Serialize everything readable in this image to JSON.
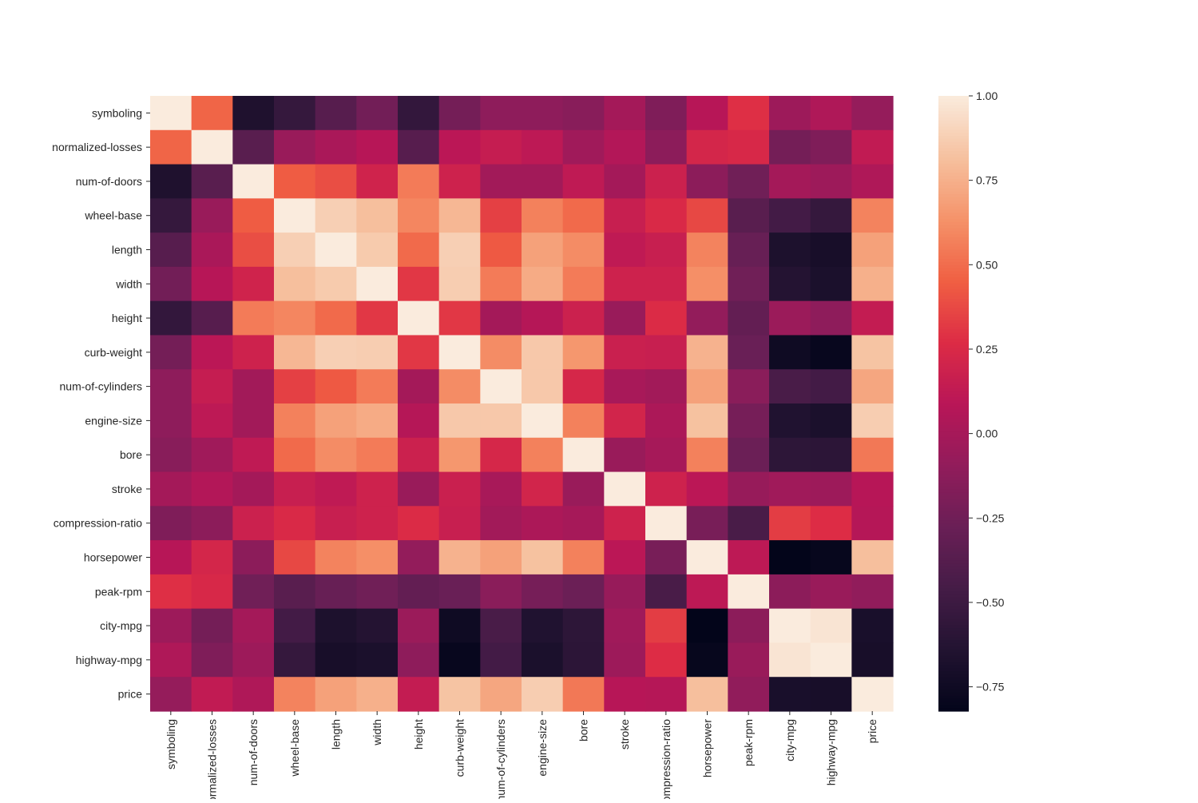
{
  "chart_data": {
    "type": "heatmap",
    "title": "",
    "xlabel": "",
    "ylabel": "",
    "colormap": "rocket",
    "vmin": -0.822,
    "vmax": 1.0,
    "colormap_stops": [
      "#03051a",
      "#221331",
      "#451c47",
      "#6a1f56",
      "#921c5b",
      "#b91657",
      "#dd2c45",
      "#f06043",
      "#f5936a",
      "#f6c19f",
      "#faebdd"
    ],
    "legend": "colorbar-right",
    "colorbar_ticks": [
      1.0,
      0.75,
      0.5,
      0.25,
      0.0,
      -0.25,
      -0.5,
      -0.75
    ],
    "colorbar_tick_labels": [
      "1.00",
      "0.75",
      "0.50",
      "0.25",
      "0.00",
      "−0.25",
      "−0.50",
      "−0.75"
    ],
    "labels": [
      "symboling",
      "normalized-losses",
      "num-of-doors",
      "wheel-base",
      "length",
      "width",
      "height",
      "curb-weight",
      "num-of-cylinders",
      "engine-size",
      "bore",
      "stroke",
      "compression-ratio",
      "horsepower",
      "peak-rpm",
      "city-mpg",
      "highway-mpg",
      "price"
    ],
    "values": [
      [
        1,
        0.47,
        -0.66,
        -0.54,
        -0.37,
        -0.24,
        -0.55,
        -0.23,
        -0.11,
        -0.11,
        -0.14,
        -0.01,
        -0.18,
        0.08,
        0.28,
        -0.04,
        0.04,
        -0.08
      ],
      [
        0.47,
        1,
        -0.36,
        -0.06,
        0.02,
        0.08,
        -0.37,
        0.1,
        0.15,
        0.11,
        -0.03,
        0.06,
        -0.12,
        0.22,
        0.24,
        -0.23,
        -0.18,
        0.13
      ],
      [
        -0.66,
        -0.36,
        1,
        0.44,
        0.39,
        0.2,
        0.55,
        0.19,
        -0.02,
        -0.02,
        0.12,
        -0.01,
        0.18,
        -0.12,
        -0.25,
        -0.01,
        -0.04,
        0.04
      ],
      [
        -0.54,
        -0.06,
        0.44,
        1,
        0.88,
        0.81,
        0.59,
        0.78,
        0.34,
        0.57,
        0.49,
        0.16,
        0.25,
        0.37,
        -0.36,
        -0.47,
        -0.54,
        0.58
      ],
      [
        -0.37,
        0.02,
        0.39,
        0.88,
        1,
        0.86,
        0.49,
        0.88,
        0.43,
        0.69,
        0.61,
        0.12,
        0.16,
        0.58,
        -0.29,
        -0.67,
        -0.7,
        0.69
      ],
      [
        -0.24,
        0.08,
        0.2,
        0.81,
        0.86,
        1,
        0.31,
        0.87,
        0.55,
        0.73,
        0.55,
        0.19,
        0.19,
        0.62,
        -0.25,
        -0.63,
        -0.68,
        0.75
      ],
      [
        -0.55,
        -0.37,
        0.55,
        0.59,
        0.49,
        0.31,
        1,
        0.31,
        -0.01,
        0.07,
        0.18,
        -0.06,
        0.26,
        -0.09,
        -0.31,
        -0.05,
        -0.11,
        0.14
      ],
      [
        -0.23,
        0.1,
        0.19,
        0.78,
        0.88,
        0.87,
        0.31,
        1,
        0.61,
        0.85,
        0.65,
        0.17,
        0.16,
        0.76,
        -0.28,
        -0.75,
        -0.79,
        0.83
      ],
      [
        -0.11,
        0.15,
        -0.02,
        0.34,
        0.43,
        0.55,
        -0.01,
        0.61,
        1,
        0.85,
        0.23,
        0.01,
        -0.02,
        0.69,
        -0.13,
        -0.44,
        -0.47,
        0.71
      ],
      [
        -0.11,
        0.11,
        -0.02,
        0.57,
        0.69,
        0.73,
        0.07,
        0.85,
        0.85,
        1,
        0.57,
        0.21,
        0.03,
        0.82,
        -0.22,
        -0.65,
        -0.68,
        0.87
      ],
      [
        -0.14,
        -0.03,
        0.12,
        0.49,
        0.61,
        0.55,
        0.18,
        0.65,
        0.23,
        0.57,
        1,
        -0.06,
        0.0,
        0.57,
        -0.27,
        -0.58,
        -0.59,
        0.54
      ],
      [
        -0.01,
        0.06,
        -0.01,
        0.16,
        0.12,
        0.19,
        -0.06,
        0.17,
        0.01,
        0.21,
        -0.06,
        1,
        0.19,
        0.1,
        -0.07,
        -0.03,
        -0.04,
        0.08
      ],
      [
        -0.18,
        -0.12,
        0.18,
        0.25,
        0.16,
        0.19,
        0.26,
        0.16,
        -0.02,
        0.03,
        0.0,
        0.19,
        1,
        -0.21,
        -0.44,
        0.33,
        0.27,
        0.07
      ],
      [
        0.08,
        0.22,
        -0.12,
        0.37,
        0.58,
        0.62,
        -0.09,
        0.76,
        0.69,
        0.82,
        0.57,
        0.1,
        -0.21,
        1,
        0.11,
        -0.82,
        -0.8,
        0.81
      ],
      [
        0.28,
        0.24,
        -0.25,
        -0.36,
        -0.29,
        -0.25,
        -0.31,
        -0.28,
        -0.13,
        -0.22,
        -0.27,
        -0.07,
        -0.44,
        0.11,
        1,
        -0.12,
        -0.06,
        -0.1
      ],
      [
        -0.04,
        -0.23,
        -0.01,
        -0.47,
        -0.67,
        -0.63,
        -0.05,
        -0.75,
        -0.44,
        -0.65,
        -0.58,
        -0.03,
        0.33,
        -0.82,
        -0.12,
        1,
        0.97,
        -0.69
      ],
      [
        0.04,
        -0.18,
        -0.04,
        -0.54,
        -0.7,
        -0.68,
        -0.11,
        -0.79,
        -0.47,
        -0.68,
        -0.59,
        -0.04,
        0.27,
        -0.8,
        -0.06,
        0.97,
        1,
        -0.7
      ],
      [
        -0.08,
        0.13,
        0.04,
        0.58,
        0.69,
        0.75,
        0.14,
        0.83,
        0.71,
        0.87,
        0.54,
        0.08,
        0.07,
        0.81,
        -0.1,
        -0.69,
        -0.7,
        1
      ]
    ]
  }
}
